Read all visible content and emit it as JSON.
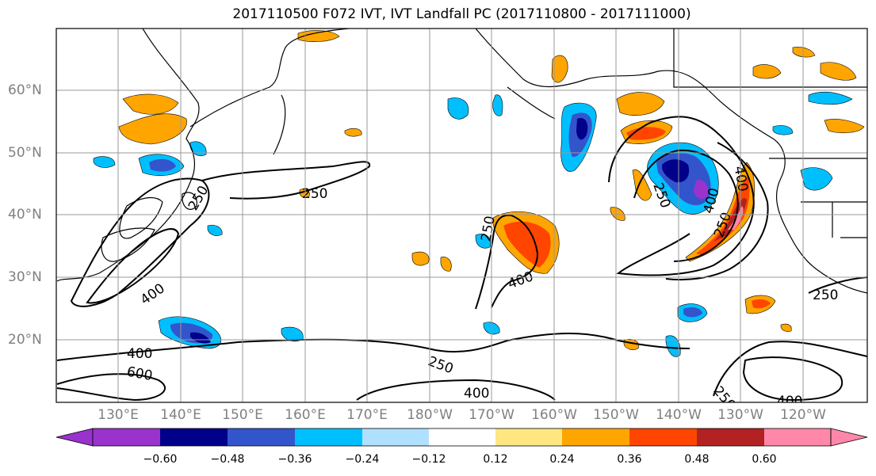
{
  "title": "2017110500 F072 IVT, IVT Landfall PC (2017110800 - 2017111000)",
  "lat_labels": [
    "60°N",
    "50°N",
    "40°N",
    "30°N",
    "20°N"
  ],
  "lon_labels": [
    "130°E",
    "140°E",
    "150°E",
    "160°E",
    "170°E",
    "180°W",
    "170°W",
    "160°W",
    "150°W",
    "140°W",
    "130°W",
    "120°W"
  ],
  "colorbar": {
    "ticks": [
      "−0.60",
      "−0.48",
      "−0.36",
      "−0.24",
      "−0.12",
      "0.12",
      "0.24",
      "0.36",
      "0.48",
      "0.60"
    ],
    "colors": [
      "#9933cc",
      "#00008b",
      "#3355cc",
      "#00bfff",
      "#b0e0ff",
      "#ffffff",
      "#ffe680",
      "#ffa500",
      "#ff4500",
      "#b22222",
      "#ff88aa"
    ]
  },
  "contour_labels": [
    "250",
    "250",
    "250",
    "250",
    "250",
    "250",
    "250",
    "400",
    "400",
    "400",
    "400",
    "400",
    "400",
    "400",
    "600",
    "250"
  ],
  "colors": {
    "pos_light": "#ffe680",
    "pos_mid": "#ffa500",
    "pos_strong": "#ff4500",
    "pos_max": "#b22222",
    "neg_light": "#b0e0ff",
    "neg_mid": "#00bfff",
    "neg_strong": "#3355cc",
    "neg_max": "#00008b",
    "neg_extreme": "#9933cc"
  }
}
